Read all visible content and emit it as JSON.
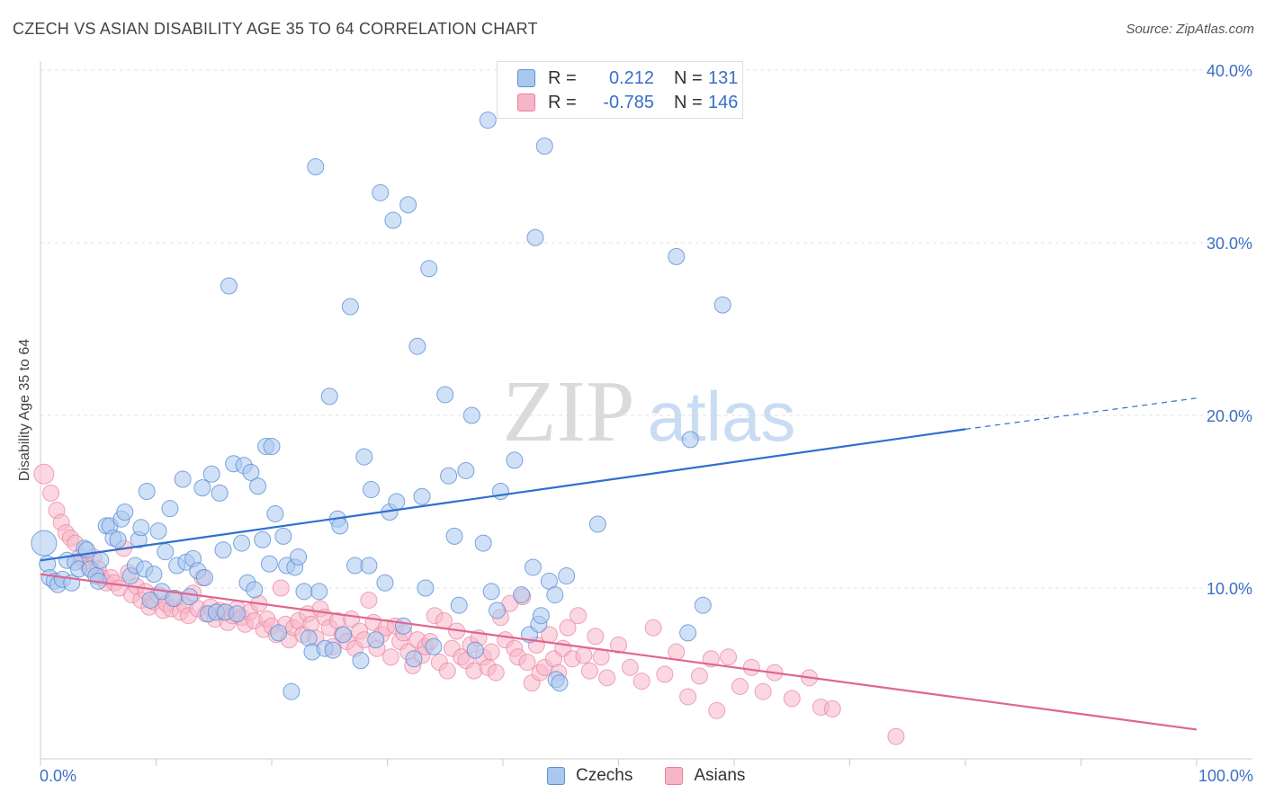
{
  "title": "CZECH VS ASIAN DISABILITY AGE 35 TO 64 CORRELATION CHART",
  "source": "Source: ZipAtlas.com",
  "watermark": {
    "zip": "ZIP",
    "atlas": "atlas"
  },
  "legend": {
    "rows": [
      {
        "r_label": "R =",
        "r_value": "0.212",
        "n_label": "N =",
        "n_value": "131"
      },
      {
        "r_label": "R =",
        "r_value": "-0.785",
        "n_label": "N =",
        "n_value": "146"
      }
    ]
  },
  "bottom_legend": [
    "Czechs",
    "Asians"
  ],
  "colors": {
    "czech_fill": "#a9c8f0",
    "czech_stroke": "#5b8fd6",
    "czech_line": "#2f6fd0",
    "asian_fill": "#f7b6c8",
    "asian_stroke": "#e87fa0",
    "asian_line": "#e0658f",
    "tick_label": "#3a6fc4",
    "grid": "#e3e3e3"
  },
  "chart_data": {
    "type": "scatter",
    "title": "CZECH VS ASIAN DISABILITY AGE 35 TO 64 CORRELATION CHART",
    "ylabel": "Disability Age 35 to 64",
    "xlabel": "",
    "xlim": [
      0,
      100
    ],
    "ylim": [
      0,
      42
    ],
    "x_tick_labels": [
      "0.0%",
      "100.0%"
    ],
    "y_tick_labels": [
      "10.0%",
      "20.0%",
      "30.0%",
      "40.0%"
    ],
    "y_ticks": [
      10,
      20,
      30,
      40
    ],
    "grid": "horizontal dashed",
    "legend_position": "top-center",
    "series": [
      {
        "name": "Czechs",
        "r": 0.212,
        "n": 131,
        "trend": {
          "x": [
            0,
            80
          ],
          "y": [
            11.6,
            19.2
          ],
          "dashed_to": [
            100,
            21.0
          ]
        },
        "points": [
          [
            0.3,
            12.6
          ],
          [
            0.6,
            11.4
          ],
          [
            0.8,
            10.6
          ],
          [
            1.2,
            10.4
          ],
          [
            1.5,
            10.2
          ],
          [
            1.9,
            10.5
          ],
          [
            2.3,
            11.6
          ],
          [
            2.7,
            10.3
          ],
          [
            3.0,
            11.5
          ],
          [
            3.3,
            11.1
          ],
          [
            3.8,
            12.3
          ],
          [
            4.0,
            12.2
          ],
          [
            4.3,
            11.1
          ],
          [
            4.8,
            10.7
          ],
          [
            5.0,
            10.4
          ],
          [
            5.2,
            11.6
          ],
          [
            5.7,
            13.6
          ],
          [
            6.0,
            13.6
          ],
          [
            6.3,
            12.9
          ],
          [
            6.7,
            12.8
          ],
          [
            7.0,
            14.0
          ],
          [
            7.3,
            14.4
          ],
          [
            7.8,
            10.7
          ],
          [
            8.2,
            11.3
          ],
          [
            8.5,
            12.8
          ],
          [
            8.7,
            13.5
          ],
          [
            9.0,
            11.1
          ],
          [
            9.2,
            15.6
          ],
          [
            9.5,
            9.3
          ],
          [
            9.8,
            10.8
          ],
          [
            10.2,
            13.3
          ],
          [
            10.5,
            9.8
          ],
          [
            10.8,
            12.1
          ],
          [
            11.2,
            14.6
          ],
          [
            11.5,
            9.4
          ],
          [
            11.8,
            11.3
          ],
          [
            12.3,
            16.3
          ],
          [
            12.6,
            11.5
          ],
          [
            12.9,
            9.5
          ],
          [
            13.2,
            11.7
          ],
          [
            13.6,
            11.0
          ],
          [
            14.0,
            15.8
          ],
          [
            14.2,
            10.6
          ],
          [
            14.5,
            8.5
          ],
          [
            14.8,
            16.6
          ],
          [
            15.2,
            8.6
          ],
          [
            15.5,
            15.5
          ],
          [
            15.8,
            12.2
          ],
          [
            16.0,
            8.6
          ],
          [
            16.3,
            27.5
          ],
          [
            16.7,
            17.2
          ],
          [
            17.0,
            8.5
          ],
          [
            17.4,
            12.6
          ],
          [
            17.6,
            17.1
          ],
          [
            17.9,
            10.3
          ],
          [
            18.2,
            16.7
          ],
          [
            18.5,
            9.9
          ],
          [
            18.8,
            15.9
          ],
          [
            19.2,
            12.8
          ],
          [
            19.5,
            18.2
          ],
          [
            19.8,
            11.4
          ],
          [
            20.0,
            18.2
          ],
          [
            20.3,
            14.3
          ],
          [
            20.6,
            7.4
          ],
          [
            21.0,
            13.0
          ],
          [
            21.3,
            11.3
          ],
          [
            21.7,
            4.0
          ],
          [
            22.0,
            11.2
          ],
          [
            22.3,
            11.8
          ],
          [
            22.8,
            9.8
          ],
          [
            23.2,
            7.1
          ],
          [
            23.5,
            6.3
          ],
          [
            23.8,
            34.4
          ],
          [
            24.1,
            9.8
          ],
          [
            24.6,
            6.5
          ],
          [
            25.0,
            21.1
          ],
          [
            25.3,
            6.4
          ],
          [
            25.7,
            14.0
          ],
          [
            25.9,
            13.6
          ],
          [
            26.2,
            7.3
          ],
          [
            26.8,
            26.3
          ],
          [
            27.2,
            11.3
          ],
          [
            27.7,
            5.8
          ],
          [
            28.0,
            17.6
          ],
          [
            28.4,
            11.3
          ],
          [
            28.6,
            15.7
          ],
          [
            29.0,
            7.0
          ],
          [
            29.4,
            32.9
          ],
          [
            29.8,
            10.3
          ],
          [
            30.2,
            14.4
          ],
          [
            30.5,
            31.3
          ],
          [
            30.8,
            15.0
          ],
          [
            31.4,
            7.8
          ],
          [
            31.8,
            32.2
          ],
          [
            32.3,
            5.9
          ],
          [
            32.6,
            24.0
          ],
          [
            33.0,
            15.3
          ],
          [
            33.3,
            10.0
          ],
          [
            33.6,
            28.5
          ],
          [
            34.0,
            6.6
          ],
          [
            35.0,
            21.2
          ],
          [
            35.3,
            16.5
          ],
          [
            35.8,
            13.0
          ],
          [
            36.2,
            9.0
          ],
          [
            36.8,
            16.8
          ],
          [
            37.3,
            20.0
          ],
          [
            37.6,
            6.4
          ],
          [
            38.3,
            12.6
          ],
          [
            38.7,
            37.1
          ],
          [
            39.0,
            9.8
          ],
          [
            39.5,
            8.7
          ],
          [
            39.8,
            15.6
          ],
          [
            41.0,
            17.4
          ],
          [
            41.6,
            9.6
          ],
          [
            42.3,
            7.3
          ],
          [
            42.8,
            30.3
          ],
          [
            42.6,
            11.2
          ],
          [
            43.1,
            7.9
          ],
          [
            43.3,
            8.4
          ],
          [
            43.6,
            35.6
          ],
          [
            44.0,
            10.4
          ],
          [
            44.5,
            9.6
          ],
          [
            44.6,
            4.7
          ],
          [
            44.9,
            4.5
          ],
          [
            45.5,
            10.7
          ],
          [
            48.2,
            13.7
          ],
          [
            55.0,
            29.2
          ],
          [
            56.2,
            18.6
          ],
          [
            59.0,
            26.4
          ],
          [
            57.3,
            9.0
          ],
          [
            56.0,
            7.4
          ]
        ]
      },
      {
        "name": "Asians",
        "r": -0.785,
        "n": 146,
        "trend": {
          "x": [
            0,
            100
          ],
          "y": [
            10.8,
            1.8
          ]
        },
        "points": [
          [
            0.3,
            16.6
          ],
          [
            0.9,
            15.5
          ],
          [
            1.4,
            14.5
          ],
          [
            1.8,
            13.8
          ],
          [
            2.2,
            13.2
          ],
          [
            2.6,
            12.9
          ],
          [
            3.0,
            12.6
          ],
          [
            3.4,
            11.8
          ],
          [
            3.8,
            11.5
          ],
          [
            4.2,
            11.2
          ],
          [
            4.6,
            11.8
          ],
          [
            5.0,
            11.1
          ],
          [
            5.3,
            10.6
          ],
          [
            5.7,
            10.3
          ],
          [
            6.1,
            10.6
          ],
          [
            6.4,
            10.3
          ],
          [
            6.8,
            10.0
          ],
          [
            7.2,
            12.3
          ],
          [
            7.6,
            10.9
          ],
          [
            7.9,
            9.6
          ],
          [
            8.3,
            10.1
          ],
          [
            8.7,
            9.3
          ],
          [
            9.1,
            9.8
          ],
          [
            9.4,
            8.9
          ],
          [
            9.8,
            9.2
          ],
          [
            10.2,
            9.6
          ],
          [
            10.6,
            8.7
          ],
          [
            10.9,
            9.1
          ],
          [
            11.3,
            8.8
          ],
          [
            11.7,
            9.4
          ],
          [
            12.1,
            8.6
          ],
          [
            12.5,
            9.0
          ],
          [
            12.8,
            8.4
          ],
          [
            13.2,
            9.7
          ],
          [
            13.6,
            8.8
          ],
          [
            14.0,
            10.6
          ],
          [
            14.3,
            8.5
          ],
          [
            14.7,
            8.9
          ],
          [
            15.1,
            8.2
          ],
          [
            15.5,
            8.7
          ],
          [
            15.9,
            8.6
          ],
          [
            16.2,
            8.0
          ],
          [
            16.6,
            8.4
          ],
          [
            17.0,
            8.8
          ],
          [
            17.4,
            8.3
          ],
          [
            17.7,
            7.9
          ],
          [
            18.1,
            8.6
          ],
          [
            18.5,
            8.1
          ],
          [
            18.9,
            9.1
          ],
          [
            19.3,
            7.6
          ],
          [
            19.6,
            8.2
          ],
          [
            20.0,
            7.8
          ],
          [
            20.4,
            7.3
          ],
          [
            20.8,
            10.0
          ],
          [
            21.2,
            7.9
          ],
          [
            21.5,
            7.0
          ],
          [
            21.9,
            7.7
          ],
          [
            22.3,
            8.1
          ],
          [
            22.7,
            7.3
          ],
          [
            23.1,
            8.5
          ],
          [
            23.4,
            7.9
          ],
          [
            23.8,
            7.1
          ],
          [
            24.2,
            8.8
          ],
          [
            24.6,
            8.3
          ],
          [
            25.0,
            7.7
          ],
          [
            25.3,
            6.6
          ],
          [
            25.7,
            8.1
          ],
          [
            26.1,
            7.3
          ],
          [
            26.5,
            6.9
          ],
          [
            26.9,
            8.2
          ],
          [
            27.2,
            6.5
          ],
          [
            27.6,
            7.5
          ],
          [
            28.0,
            7.0
          ],
          [
            28.4,
            9.3
          ],
          [
            28.8,
            8.0
          ],
          [
            29.1,
            6.5
          ],
          [
            29.5,
            7.3
          ],
          [
            29.9,
            7.7
          ],
          [
            30.3,
            6.0
          ],
          [
            30.7,
            7.8
          ],
          [
            31.1,
            6.9
          ],
          [
            31.4,
            7.4
          ],
          [
            31.8,
            6.3
          ],
          [
            32.2,
            5.5
          ],
          [
            32.6,
            7.0
          ],
          [
            33.0,
            6.1
          ],
          [
            33.3,
            6.6
          ],
          [
            33.7,
            6.9
          ],
          [
            34.1,
            8.4
          ],
          [
            34.5,
            5.7
          ],
          [
            34.9,
            8.1
          ],
          [
            35.2,
            5.2
          ],
          [
            35.6,
            6.5
          ],
          [
            36.0,
            7.5
          ],
          [
            36.4,
            6.0
          ],
          [
            36.8,
            5.8
          ],
          [
            37.2,
            6.7
          ],
          [
            37.5,
            5.2
          ],
          [
            37.9,
            7.1
          ],
          [
            38.3,
            6.0
          ],
          [
            38.7,
            5.4
          ],
          [
            39.0,
            6.3
          ],
          [
            39.4,
            5.1
          ],
          [
            39.8,
            8.3
          ],
          [
            40.2,
            7.0
          ],
          [
            40.6,
            9.1
          ],
          [
            41.0,
            6.5
          ],
          [
            41.3,
            6.0
          ],
          [
            41.7,
            9.5
          ],
          [
            42.1,
            5.7
          ],
          [
            42.5,
            4.5
          ],
          [
            42.9,
            6.7
          ],
          [
            43.2,
            5.1
          ],
          [
            43.6,
            5.4
          ],
          [
            44.0,
            7.3
          ],
          [
            44.4,
            5.9
          ],
          [
            44.8,
            5.1
          ],
          [
            45.2,
            6.5
          ],
          [
            45.6,
            7.7
          ],
          [
            46.0,
            5.9
          ],
          [
            46.5,
            8.4
          ],
          [
            47.0,
            6.1
          ],
          [
            47.5,
            5.2
          ],
          [
            48.0,
            7.2
          ],
          [
            48.5,
            6.0
          ],
          [
            49.0,
            4.8
          ],
          [
            50.0,
            6.7
          ],
          [
            51.0,
            5.4
          ],
          [
            52.0,
            4.6
          ],
          [
            53.0,
            7.7
          ],
          [
            54.0,
            5.0
          ],
          [
            55.0,
            6.3
          ],
          [
            56.0,
            3.7
          ],
          [
            57.0,
            4.9
          ],
          [
            58.0,
            5.9
          ],
          [
            58.5,
            2.9
          ],
          [
            59.5,
            6.0
          ],
          [
            60.5,
            4.3
          ],
          [
            61.5,
            5.4
          ],
          [
            62.5,
            4.0
          ],
          [
            63.5,
            5.1
          ],
          [
            65.0,
            3.6
          ],
          [
            66.5,
            4.8
          ],
          [
            67.5,
            3.1
          ],
          [
            68.5,
            3.0
          ],
          [
            74.0,
            1.4
          ]
        ]
      }
    ]
  }
}
